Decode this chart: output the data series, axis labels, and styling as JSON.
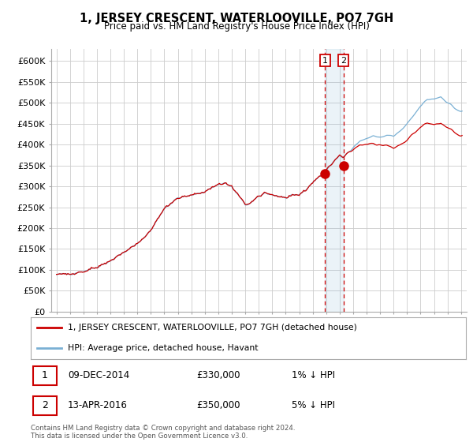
{
  "title": "1, JERSEY CRESCENT, WATERLOOVILLE, PO7 7GH",
  "subtitle": "Price paid vs. HM Land Registry's House Price Index (HPI)",
  "ylabel_ticks": [
    "£0",
    "£50K",
    "£100K",
    "£150K",
    "£200K",
    "£250K",
    "£300K",
    "£350K",
    "£400K",
    "£450K",
    "£500K",
    "£550K",
    "£600K"
  ],
  "ytick_values": [
    0,
    50000,
    100000,
    150000,
    200000,
    250000,
    300000,
    350000,
    400000,
    450000,
    500000,
    550000,
    600000
  ],
  "ylim": [
    0,
    630000
  ],
  "legend_line1": "1, JERSEY CRESCENT, WATERLOOVILLE, PO7 7GH (detached house)",
  "legend_line2": "HPI: Average price, detached house, Havant",
  "table_rows": [
    {
      "num": "1",
      "date": "09-DEC-2014",
      "price": "£330,000",
      "hpi": "1% ↓ HPI"
    },
    {
      "num": "2",
      "date": "13-APR-2016",
      "price": "£350,000",
      "hpi": "5% ↓ HPI"
    }
  ],
  "footer": "Contains HM Land Registry data © Crown copyright and database right 2024.\nThis data is licensed under the Open Government Licence v3.0.",
  "sale1_year": 2014.92,
  "sale1_price": 330000,
  "sale2_year": 2016.28,
  "sale2_price": 350000,
  "red_color": "#cc0000",
  "blue_color": "#7ab0d4",
  "shade_color": "#ddeeff",
  "background_color": "#ffffff",
  "grid_color": "#cccccc"
}
